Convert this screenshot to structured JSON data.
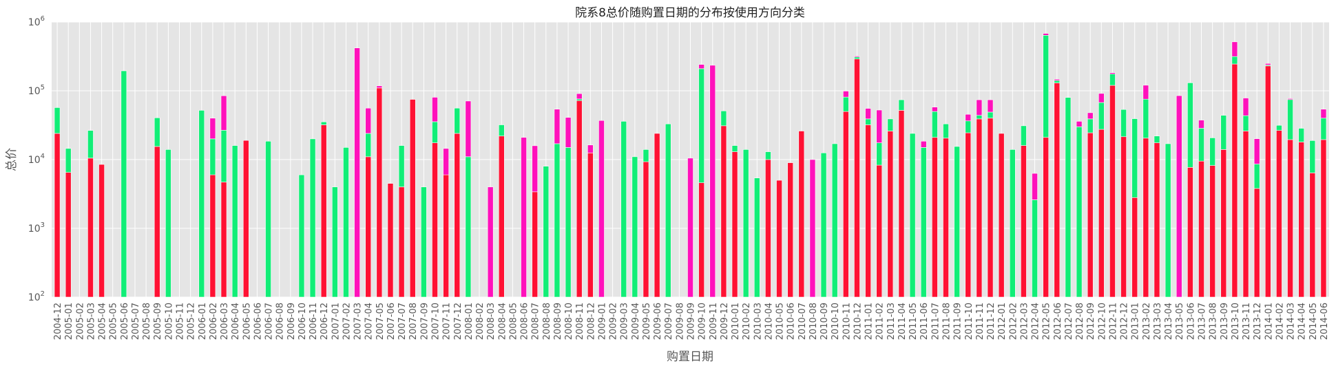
{
  "chart_data": {
    "type": "bar",
    "stacked": true,
    "title": "院系8总价随购置日期的分布按使用方向分类",
    "xlabel": "购置日期",
    "ylabel": "总价",
    "yscale": "log",
    "ylim": [
      100,
      1000000
    ],
    "yticks": [
      {
        "value": 100,
        "base": "10",
        "exp": "2"
      },
      {
        "value": 1000,
        "base": "10",
        "exp": "3"
      },
      {
        "value": 10000,
        "base": "10",
        "exp": "4"
      },
      {
        "value": 100000,
        "base": "10",
        "exp": "5"
      },
      {
        "value": 1000000,
        "base": "10",
        "exp": "6"
      }
    ],
    "grid": true,
    "legend": "none",
    "colors": {
      "red": "#ff1133",
      "green": "#11ee77",
      "magenta": "#ff11bb",
      "plot_bg": "#e5e5e5",
      "grid": "#ffffff",
      "text": "#555555"
    },
    "categories": [
      "2004-12",
      "2005-01",
      "2005-02",
      "2005-03",
      "2005-04",
      "2005-05",
      "2005-06",
      "2005-07",
      "2005-08",
      "2005-09",
      "2005-10",
      "2005-11",
      "2005-12",
      "2006-01",
      "2006-02",
      "2006-03",
      "2006-04",
      "2006-05",
      "2006-06",
      "2006-07",
      "2006-08",
      "2006-09",
      "2006-10",
      "2006-11",
      "2006-12",
      "2007-01",
      "2007-02",
      "2007-03",
      "2007-04",
      "2007-05",
      "2007-06",
      "2007-07",
      "2007-08",
      "2007-09",
      "2007-10",
      "2007-11",
      "2007-12",
      "2008-01",
      "2008-02",
      "2008-03",
      "2008-04",
      "2008-05",
      "2008-06",
      "2008-07",
      "2008-08",
      "2008-09",
      "2008-10",
      "2008-11",
      "2008-12",
      "2009-01",
      "2009-02",
      "2009-03",
      "2009-04",
      "2009-05",
      "2009-06",
      "2009-07",
      "2009-08",
      "2009-09",
      "2009-10",
      "2009-11",
      "2009-12",
      "2010-01",
      "2010-02",
      "2010-03",
      "2010-04",
      "2010-05",
      "2010-06",
      "2010-07",
      "2010-08",
      "2010-09",
      "2010-10",
      "2010-11",
      "2010-12",
      "2011-01",
      "2011-02",
      "2011-03",
      "2011-04",
      "2011-05",
      "2011-06",
      "2011-07",
      "2011-08",
      "2011-09",
      "2011-10",
      "2011-11",
      "2011-12",
      "2012-01",
      "2012-02",
      "2012-03",
      "2012-04",
      "2012-05",
      "2012-06",
      "2012-07",
      "2012-08",
      "2012-09",
      "2012-10",
      "2012-11",
      "2012-12",
      "2013-01",
      "2013-02",
      "2013-03",
      "2013-04",
      "2013-05",
      "2013-06",
      "2013-07",
      "2013-08",
      "2013-09",
      "2013-10",
      "2013-11",
      "2013-12",
      "2014-01",
      "2014-02",
      "2014-03",
      "2014-04",
      "2014-05",
      "2014-06"
    ],
    "series": [
      {
        "color": "#ff1133",
        "values": [
          24000,
          6500,
          0,
          10500,
          8500,
          0,
          0,
          0,
          0,
          15500,
          0,
          0,
          0,
          0,
          6000,
          4700,
          0,
          19000,
          0,
          0,
          0,
          0,
          0,
          0,
          32000,
          0,
          0,
          0,
          11000,
          110000,
          4500,
          4000,
          75000,
          0,
          17500,
          6000,
          24000,
          0,
          0,
          0,
          22000,
          0,
          0,
          3400,
          0,
          0,
          0,
          72000,
          12500,
          0,
          0,
          0,
          0,
          9300,
          24000,
          0,
          0,
          0,
          4600,
          0,
          31000,
          13000,
          0,
          0,
          10000,
          5000,
          9000,
          26000,
          0,
          0,
          0,
          50000,
          290000,
          32000,
          8300,
          26000,
          52000,
          0,
          0,
          21000,
          20500,
          0,
          24500,
          39000,
          40000,
          24000,
          0,
          16000,
          0,
          21000,
          130000,
          0,
          0,
          24500,
          27500,
          120000,
          21500,
          2800,
          20500,
          17500,
          0,
          0,
          7700,
          9500,
          8200,
          14000,
          245000,
          26000,
          3800,
          230000,
          26500,
          19500,
          18000,
          6400,
          19500
        ]
      },
      {
        "color": "#11ee77",
        "values": [
          33000,
          8000,
          0,
          16000,
          0,
          0,
          195000,
          0,
          0,
          25000,
          14000,
          0,
          0,
          52000,
          14000,
          22000,
          16000,
          0,
          0,
          18500,
          0,
          0,
          6000,
          20000,
          3300,
          4000,
          15000,
          0,
          13000,
          0,
          0,
          12000,
          0,
          4000,
          18000,
          0,
          32000,
          11000,
          0,
          0,
          10000,
          0,
          0,
          0,
          8000,
          17000,
          15000,
          4000,
          0,
          0,
          0,
          36000,
          11000,
          4700,
          0,
          33000,
          0,
          0,
          205000,
          0,
          20000,
          3000,
          14000,
          5400,
          3000,
          0,
          0,
          0,
          0,
          12500,
          17000,
          31000,
          20000,
          7000,
          9200,
          13000,
          22000,
          24000,
          15000,
          29000,
          12500,
          15500,
          12000,
          5000,
          9000,
          0,
          14000,
          15000,
          2600,
          620000,
          11000,
          80000,
          30000,
          14500,
          40000,
          55000,
          32000,
          36500,
          55000,
          4500,
          17000,
          0,
          123000,
          19000,
          12500,
          30000,
          70000,
          17500,
          4800,
          7000,
          5000,
          55000,
          10500,
          12500,
          20500
        ]
      },
      {
        "color": "#ff11bb",
        "values": [
          0,
          0,
          0,
          0,
          0,
          0,
          0,
          0,
          0,
          0,
          0,
          0,
          0,
          0,
          20000,
          58000,
          0,
          0,
          0,
          0,
          0,
          0,
          0,
          0,
          0,
          0,
          0,
          420000,
          32000,
          8000,
          0,
          0,
          0,
          0,
          45000,
          8500,
          0,
          60000,
          0,
          4000,
          0,
          0,
          21000,
          12500,
          0,
          37000,
          26000,
          15000,
          3800,
          37000,
          0,
          0,
          0,
          0,
          0,
          0,
          0,
          10500,
          32000,
          235000,
          0,
          0,
          0,
          0,
          0,
          0,
          0,
          0,
          10000,
          0,
          0,
          18000,
          10000,
          16500,
          35000,
          0,
          0,
          0,
          3500,
          8000,
          0,
          0,
          9000,
          30000,
          25000,
          0,
          0,
          0,
          3700,
          42000,
          6000,
          0,
          6000,
          9000,
          24000,
          8000,
          0,
          0,
          45000,
          0,
          0,
          85000,
          0,
          9000,
          0,
          0,
          200000,
          35000,
          11500,
          12500,
          0,
          2500,
          0,
          0,
          14000
        ]
      }
    ]
  }
}
